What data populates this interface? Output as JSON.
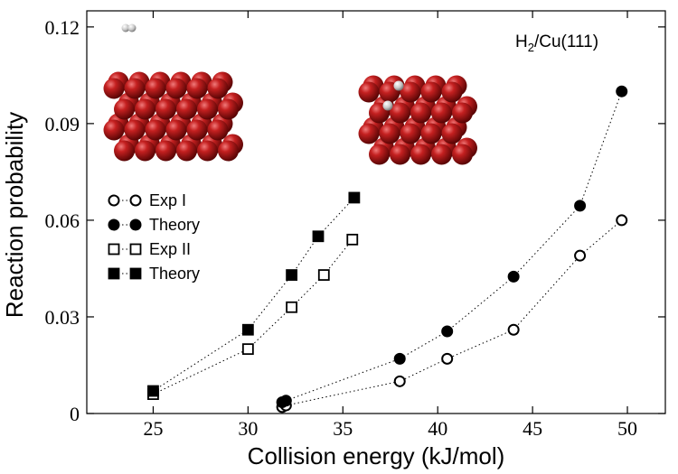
{
  "chart_data": {
    "type": "scatter",
    "xlabel": "Collision energy (kJ/mol)",
    "ylabel": "Reaction probability",
    "xlim": [
      21.5,
      52
    ],
    "ylim": [
      0,
      0.125
    ],
    "xticks": [
      25,
      30,
      35,
      40,
      45,
      50
    ],
    "yticks": [
      0,
      0.03,
      0.06,
      0.09,
      0.12
    ],
    "xtick_labels": [
      "25",
      "30",
      "35",
      "40",
      "45",
      "50"
    ],
    "ytick_labels": [
      "0",
      "0.03",
      "0.06",
      "0.09",
      "0.12"
    ],
    "annotation": "H",
    "annotation_sub": "2",
    "annotation_rest": "/Cu(111)",
    "grid": false,
    "legend_position": "left, middle",
    "series": [
      {
        "name": "Exp I",
        "marker": "circle-open",
        "connect": true,
        "x": [
          31.8,
          32.0,
          38.0,
          40.5,
          44.0,
          47.5,
          49.7
        ],
        "y": [
          0.002,
          0.0025,
          0.01,
          0.017,
          0.026,
          0.049,
          0.06
        ]
      },
      {
        "name": "Theory",
        "marker": "circle-filled",
        "connect": true,
        "x": [
          31.8,
          32.0,
          38.0,
          40.5,
          44.0,
          47.5,
          49.7
        ],
        "y": [
          0.0035,
          0.004,
          0.017,
          0.0255,
          0.0425,
          0.0645,
          0.1
        ]
      },
      {
        "name": "Exp II",
        "marker": "square-open",
        "connect": true,
        "x": [
          25.0,
          30.0,
          32.3,
          34.0,
          35.5
        ],
        "y": [
          0.006,
          0.02,
          0.033,
          0.043,
          0.054
        ]
      },
      {
        "name": "Theory",
        "marker": "square-filled",
        "connect": true,
        "x": [
          25.0,
          30.0,
          32.3,
          33.7,
          35.6
        ],
        "y": [
          0.007,
          0.026,
          0.043,
          0.055,
          0.067
        ]
      }
    ],
    "colors": {
      "markers": "#000000",
      "surface_atoms": "#b01818",
      "hydrogen": "#c8c8c8"
    }
  }
}
